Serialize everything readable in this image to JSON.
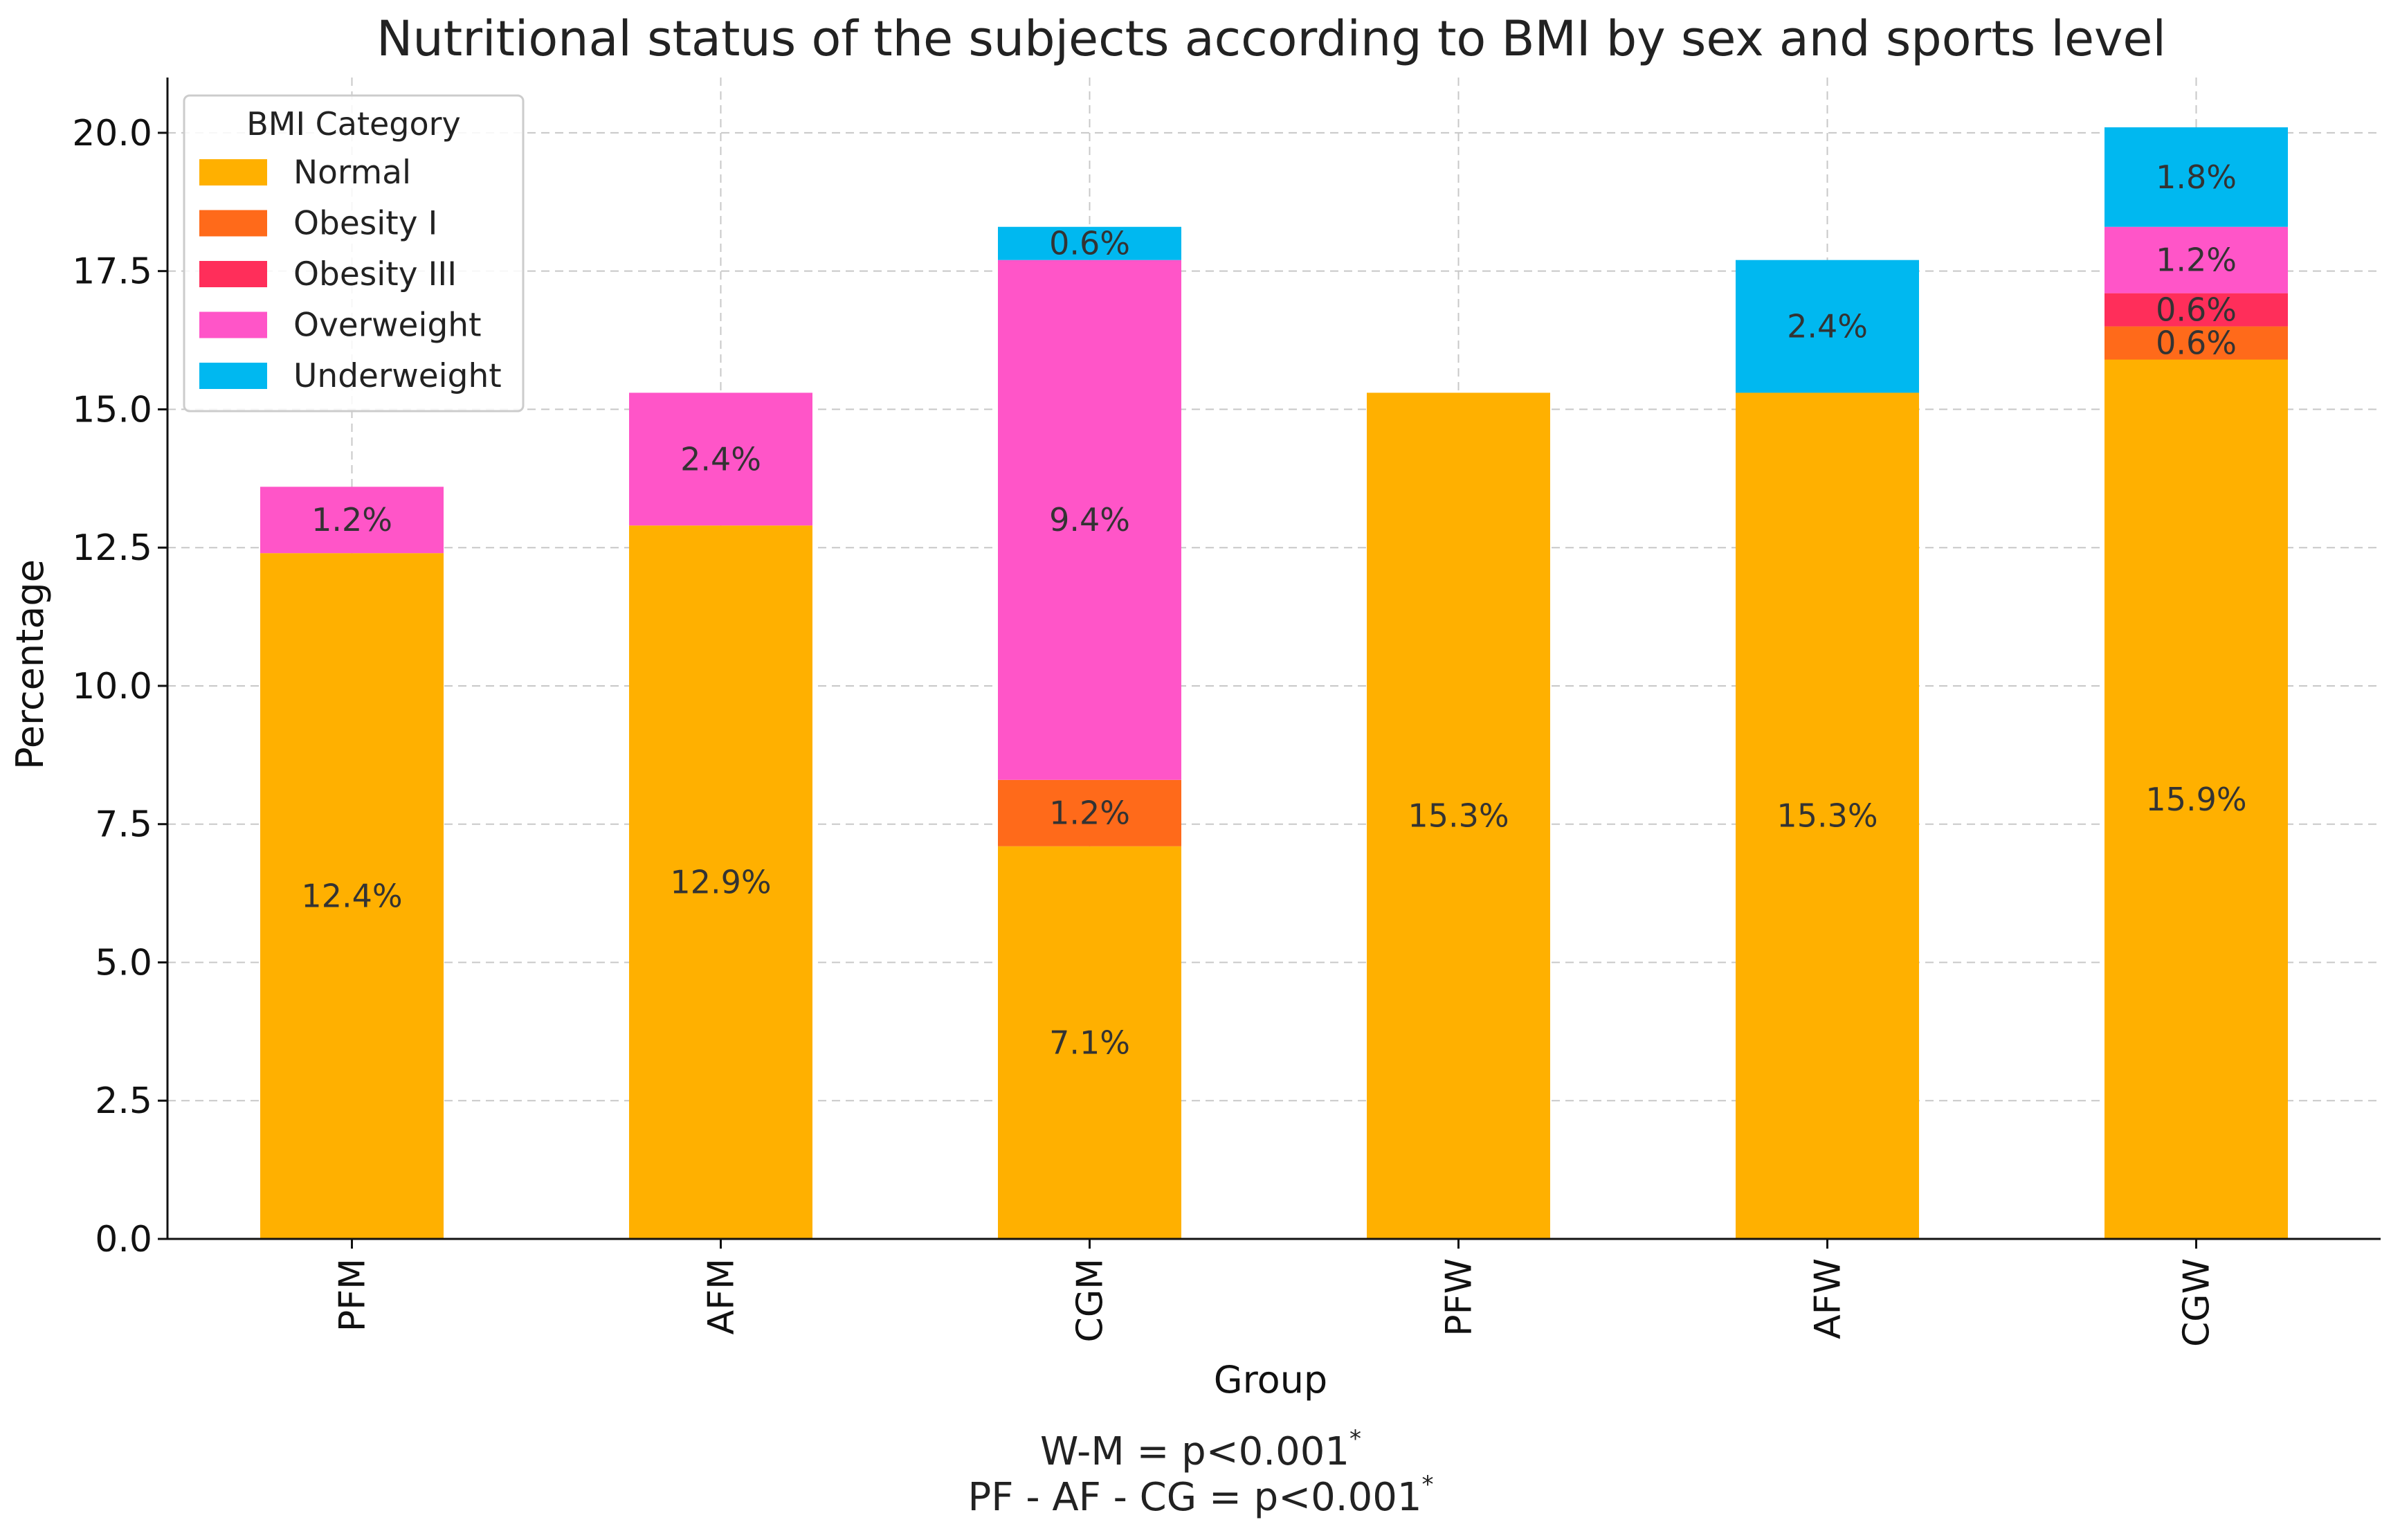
{
  "chart_data": {
    "type": "bar",
    "stacked": true,
    "title": "Nutritional status of the subjects according to BMI by sex and sports level",
    "xlabel": "Group",
    "ylabel": "Percentage",
    "ylim": [
      0,
      21
    ],
    "yticks": [
      "0.0",
      "2.5",
      "5.0",
      "7.5",
      "10.0",
      "12.5",
      "15.0",
      "17.5",
      "20.0"
    ],
    "grid": true,
    "categories": [
      "PFM",
      "AFM",
      "CGM",
      "PFW",
      "AFW",
      "CGW"
    ],
    "series": [
      {
        "name": "Normal",
        "color": "#FFB000",
        "values": [
          12.4,
          12.9,
          7.1,
          15.3,
          15.3,
          15.9
        ]
      },
      {
        "name": "Obesity I",
        "color": "#FF6A1A",
        "values": [
          0,
          0,
          1.2,
          0,
          0,
          0.6
        ]
      },
      {
        "name": "Obesity III",
        "color": "#FF2E5A",
        "values": [
          0,
          0,
          0,
          0,
          0,
          0.6
        ]
      },
      {
        "name": "Overweight",
        "color": "#FF55C8",
        "values": [
          1.2,
          2.4,
          9.4,
          0,
          0,
          1.2
        ]
      },
      {
        "name": "Underweight",
        "color": "#00B8F0",
        "values": [
          0,
          0,
          0.6,
          0,
          2.4,
          1.8
        ]
      }
    ],
    "legend": {
      "title": "BMI Category",
      "position": "top-left"
    },
    "notes": [
      {
        "text": "W-M = p<0.001",
        "sup": "*"
      },
      {
        "text": "PF - AF - CG = p<0.001",
        "sup": "*"
      }
    ]
  }
}
